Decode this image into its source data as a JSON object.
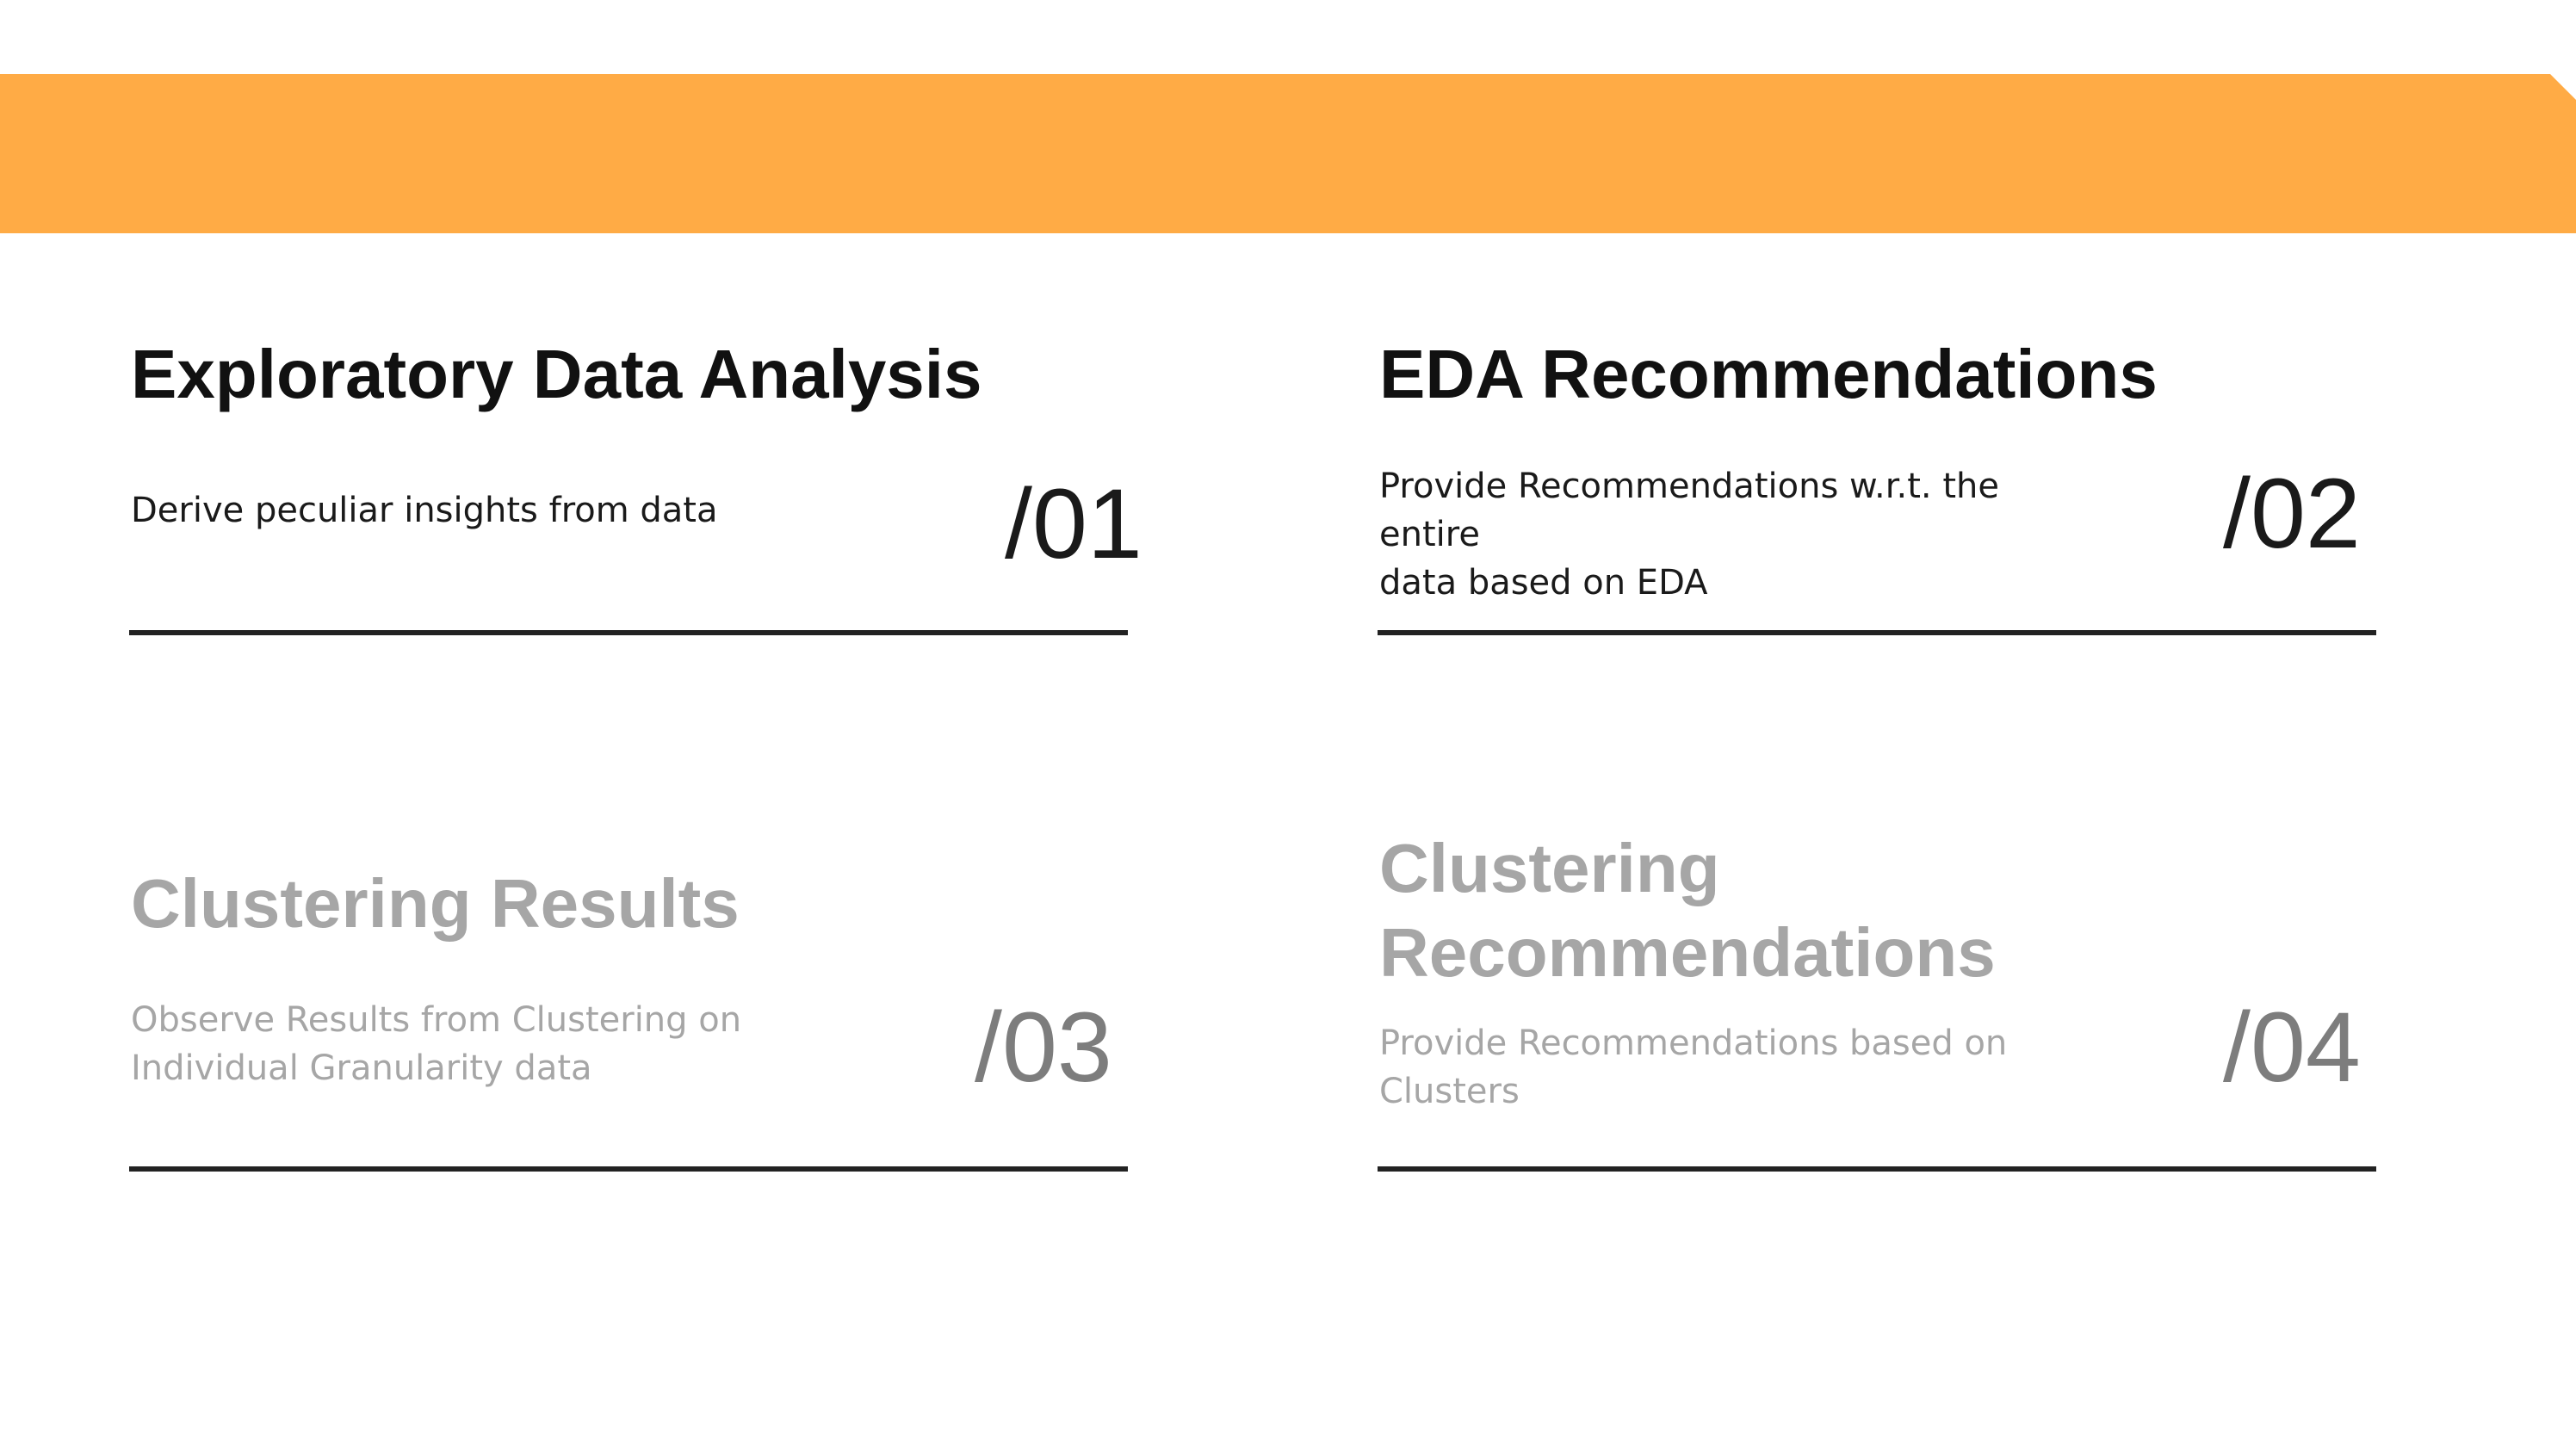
{
  "banner": {
    "color": "#ffab45"
  },
  "cards": [
    {
      "title": "Exploratory Data Analysis",
      "description": "Derive peculiar insights from data",
      "number": "/01",
      "state": "active"
    },
    {
      "title": "EDA Recommendations",
      "description": "Provide  Recommendations w.r.t. the entire\ndata based on  EDA",
      "number": "/02",
      "state": "active"
    },
    {
      "title": "Clustering Results",
      "description": "Observe  Results from Clustering on\nIndividual Granularity data",
      "number": "/03",
      "state": "dimmed"
    },
    {
      "title": "Clustering\nRecommendations",
      "description": "Provide  Recommendations based on\nClusters",
      "number": "/04",
      "state": "dimmed"
    }
  ]
}
